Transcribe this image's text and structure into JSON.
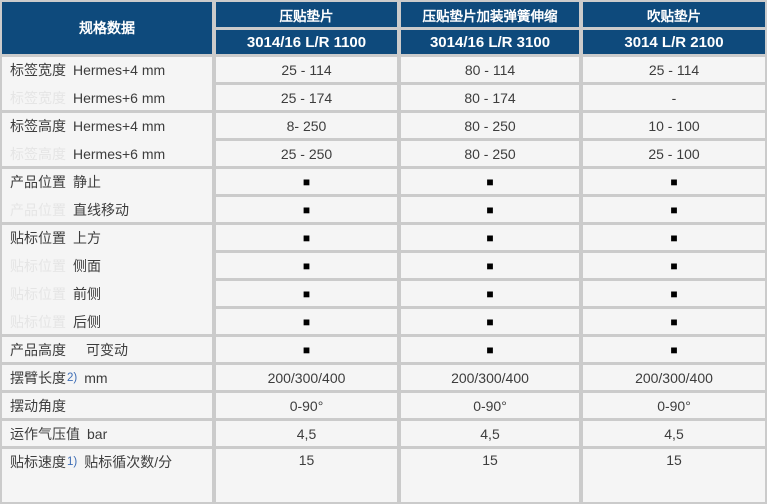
{
  "table": {
    "corner_label": "规格数据",
    "colors": {
      "header_bg": "#0e4a7c",
      "grid": "#cbcbcb",
      "cell_bg": "#f5f5f5",
      "text": "#3d3d3d",
      "ghost_text": "#e5e5e5",
      "footnote_blue": "#3e6db5",
      "header_text": "#ffffff",
      "square": "#000000"
    },
    "products": [
      {
        "name": "压贴垫片",
        "model": "3014/16 L/R 1100"
      },
      {
        "name": "压贴垫片加装弹簧伸缩",
        "model": "3014/16 L/R 3100"
      },
      {
        "name": "吹贴垫片",
        "model": "3014 L/R 2100"
      }
    ],
    "groups": [
      {
        "rows": [
          {
            "main": "标签宽度",
            "ghost": false,
            "sub": "Hermes+4 mm",
            "values": [
              "25 - 114",
              "80 - 114",
              "25 - 114"
            ]
          },
          {
            "main": "标签宽度",
            "ghost": true,
            "sub": "Hermes+6 mm",
            "values": [
              "25 - 174",
              "80 - 174",
              "-"
            ]
          }
        ]
      },
      {
        "rows": [
          {
            "main": "标签高度",
            "ghost": false,
            "sub": "Hermes+4 mm",
            "values": [
              "8- 250",
              "80 - 250",
              "10 - 100"
            ]
          },
          {
            "main": "标签高度",
            "ghost": true,
            "sub": "Hermes+6 mm",
            "values": [
              "25 - 250",
              "80 - 250",
              "25 - 100"
            ]
          }
        ]
      },
      {
        "rows": [
          {
            "main": "产品位置",
            "ghost": false,
            "sub": "静止",
            "values": [
              "■",
              "■",
              "■"
            ]
          },
          {
            "main": "产品位置",
            "ghost": true,
            "sub": "直线移动",
            "values": [
              "■",
              "■",
              "■"
            ]
          }
        ]
      },
      {
        "rows": [
          {
            "main": "贴标位置",
            "ghost": false,
            "sub": "上方",
            "values": [
              "■",
              "■",
              "■"
            ]
          },
          {
            "main": "贴标位置",
            "ghost": true,
            "sub": "侧面",
            "values": [
              "■",
              "■",
              "■"
            ]
          },
          {
            "main": "贴标位置",
            "ghost": true,
            "sub": "前侧",
            "values": [
              "■",
              "■",
              "■"
            ]
          },
          {
            "main": "贴标位置",
            "ghost": true,
            "sub": "后侧",
            "values": [
              "■",
              "■",
              "■"
            ]
          }
        ]
      },
      {
        "rows": [
          {
            "main": "产品高度",
            "ghost": false,
            "sub": "可变动",
            "wide": true,
            "values": [
              "■",
              "■",
              "■"
            ]
          }
        ]
      },
      {
        "rows": [
          {
            "main": "摆臂长度",
            "ghost": false,
            "note": "2)",
            "sub": "mm",
            "values": [
              "200/300/400",
              "200/300/400",
              "200/300/400"
            ]
          }
        ]
      },
      {
        "rows": [
          {
            "main": "摆动角度",
            "ghost": false,
            "sub": "",
            "values": [
              "0-90°",
              "0-90°",
              "0-90°"
            ]
          }
        ]
      },
      {
        "rows": [
          {
            "main": "运作气压值",
            "ghost": false,
            "sub": "bar",
            "values": [
              "4,5",
              "4,5",
              "4,5"
            ]
          }
        ]
      },
      {
        "tall": true,
        "rows": [
          {
            "main": "贴标速度",
            "ghost": false,
            "note": "1)",
            "sub": "贴标循次数/分",
            "values": [
              "15",
              "15",
              "15"
            ]
          }
        ]
      }
    ],
    "layout": {
      "label_col_width": 210,
      "data_col_widths": [
        181,
        178,
        182
      ]
    }
  }
}
